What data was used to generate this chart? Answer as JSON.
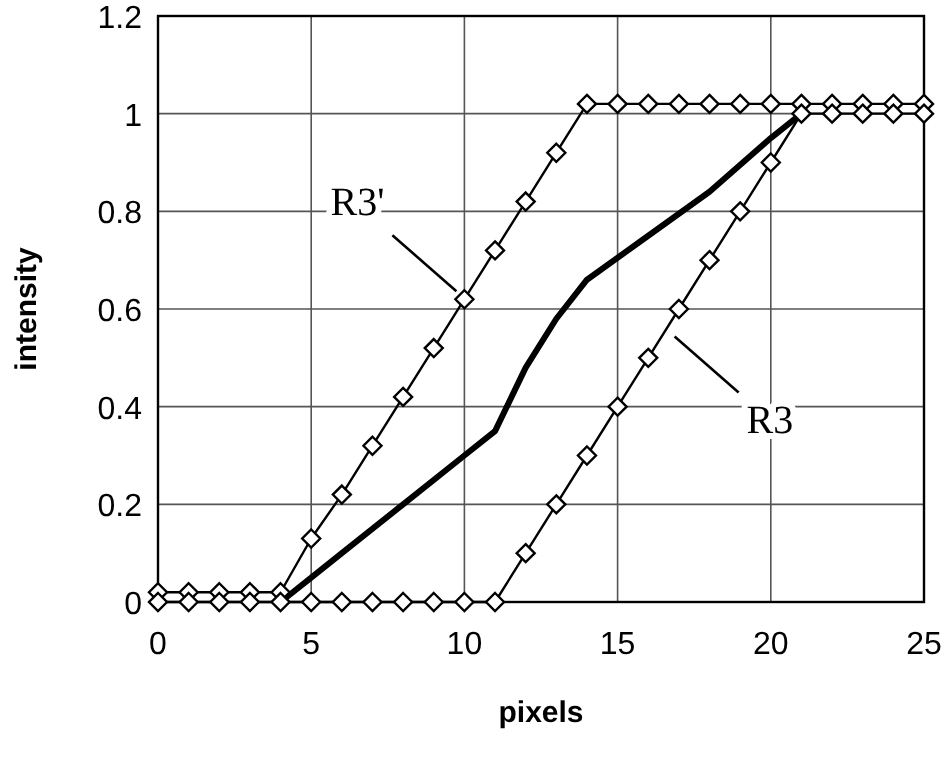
{
  "chart_data": {
    "type": "line",
    "xlabel": "pixels",
    "ylabel": "intensity",
    "xlim": [
      0,
      25
    ],
    "ylim": [
      0,
      1.2
    ],
    "xticks": [
      0,
      5,
      10,
      15,
      20,
      25
    ],
    "yticks": [
      0,
      0.2,
      0.4,
      0.6,
      0.8,
      1,
      1.2
    ],
    "grid": true,
    "series": [
      {
        "color": "#000000",
        "marker": "diamond",
        "x": [
          0,
          1,
          2,
          3,
          4,
          5,
          6,
          7,
          8,
          9,
          10,
          11,
          12,
          13,
          14,
          15,
          16,
          17,
          18,
          19,
          20,
          21,
          22,
          23,
          24,
          25
        ],
        "values": [
          0.02,
          0.02,
          0.02,
          0.02,
          0.02,
          0.13,
          0.22,
          0.32,
          0.42,
          0.52,
          0.62,
          0.72,
          0.82,
          0.92,
          1.02,
          1.02,
          1.02,
          1.02,
          1.02,
          1.02,
          1.02,
          1.02,
          1.02,
          1.02,
          1.02,
          1.02
        ]
      },
      {
        "color": "#000000",
        "marker": "diamond",
        "x": [
          0,
          1,
          2,
          3,
          4,
          5,
          6,
          7,
          8,
          9,
          10,
          11,
          12,
          13,
          14,
          15,
          16,
          17,
          18,
          19,
          20,
          21,
          22,
          23,
          24,
          25
        ],
        "values": [
          0,
          0,
          0,
          0,
          0,
          0,
          0,
          0,
          0,
          0,
          0,
          0,
          0.1,
          0.2,
          0.3,
          0.4,
          0.5,
          0.6,
          0.7,
          0.8,
          0.9,
          1.0,
          1.0,
          1.0,
          1.0,
          1.0
        ]
      },
      {
        "color": "#000000",
        "marker": "none",
        "x": [
          4,
          5,
          6,
          8,
          10,
          11,
          12,
          13,
          14,
          16,
          18,
          20,
          21
        ],
        "values": [
          0,
          0.05,
          0.1,
          0.2,
          0.3,
          0.35,
          0.48,
          0.58,
          0.66,
          0.75,
          0.84,
          0.95,
          1.0
        ]
      }
    ],
    "annotations": [
      {
        "text": "R3'",
        "x": 10,
        "y": 0.62
      },
      {
        "text": "R3",
        "x": 16.6,
        "y": 0.56
      }
    ]
  }
}
